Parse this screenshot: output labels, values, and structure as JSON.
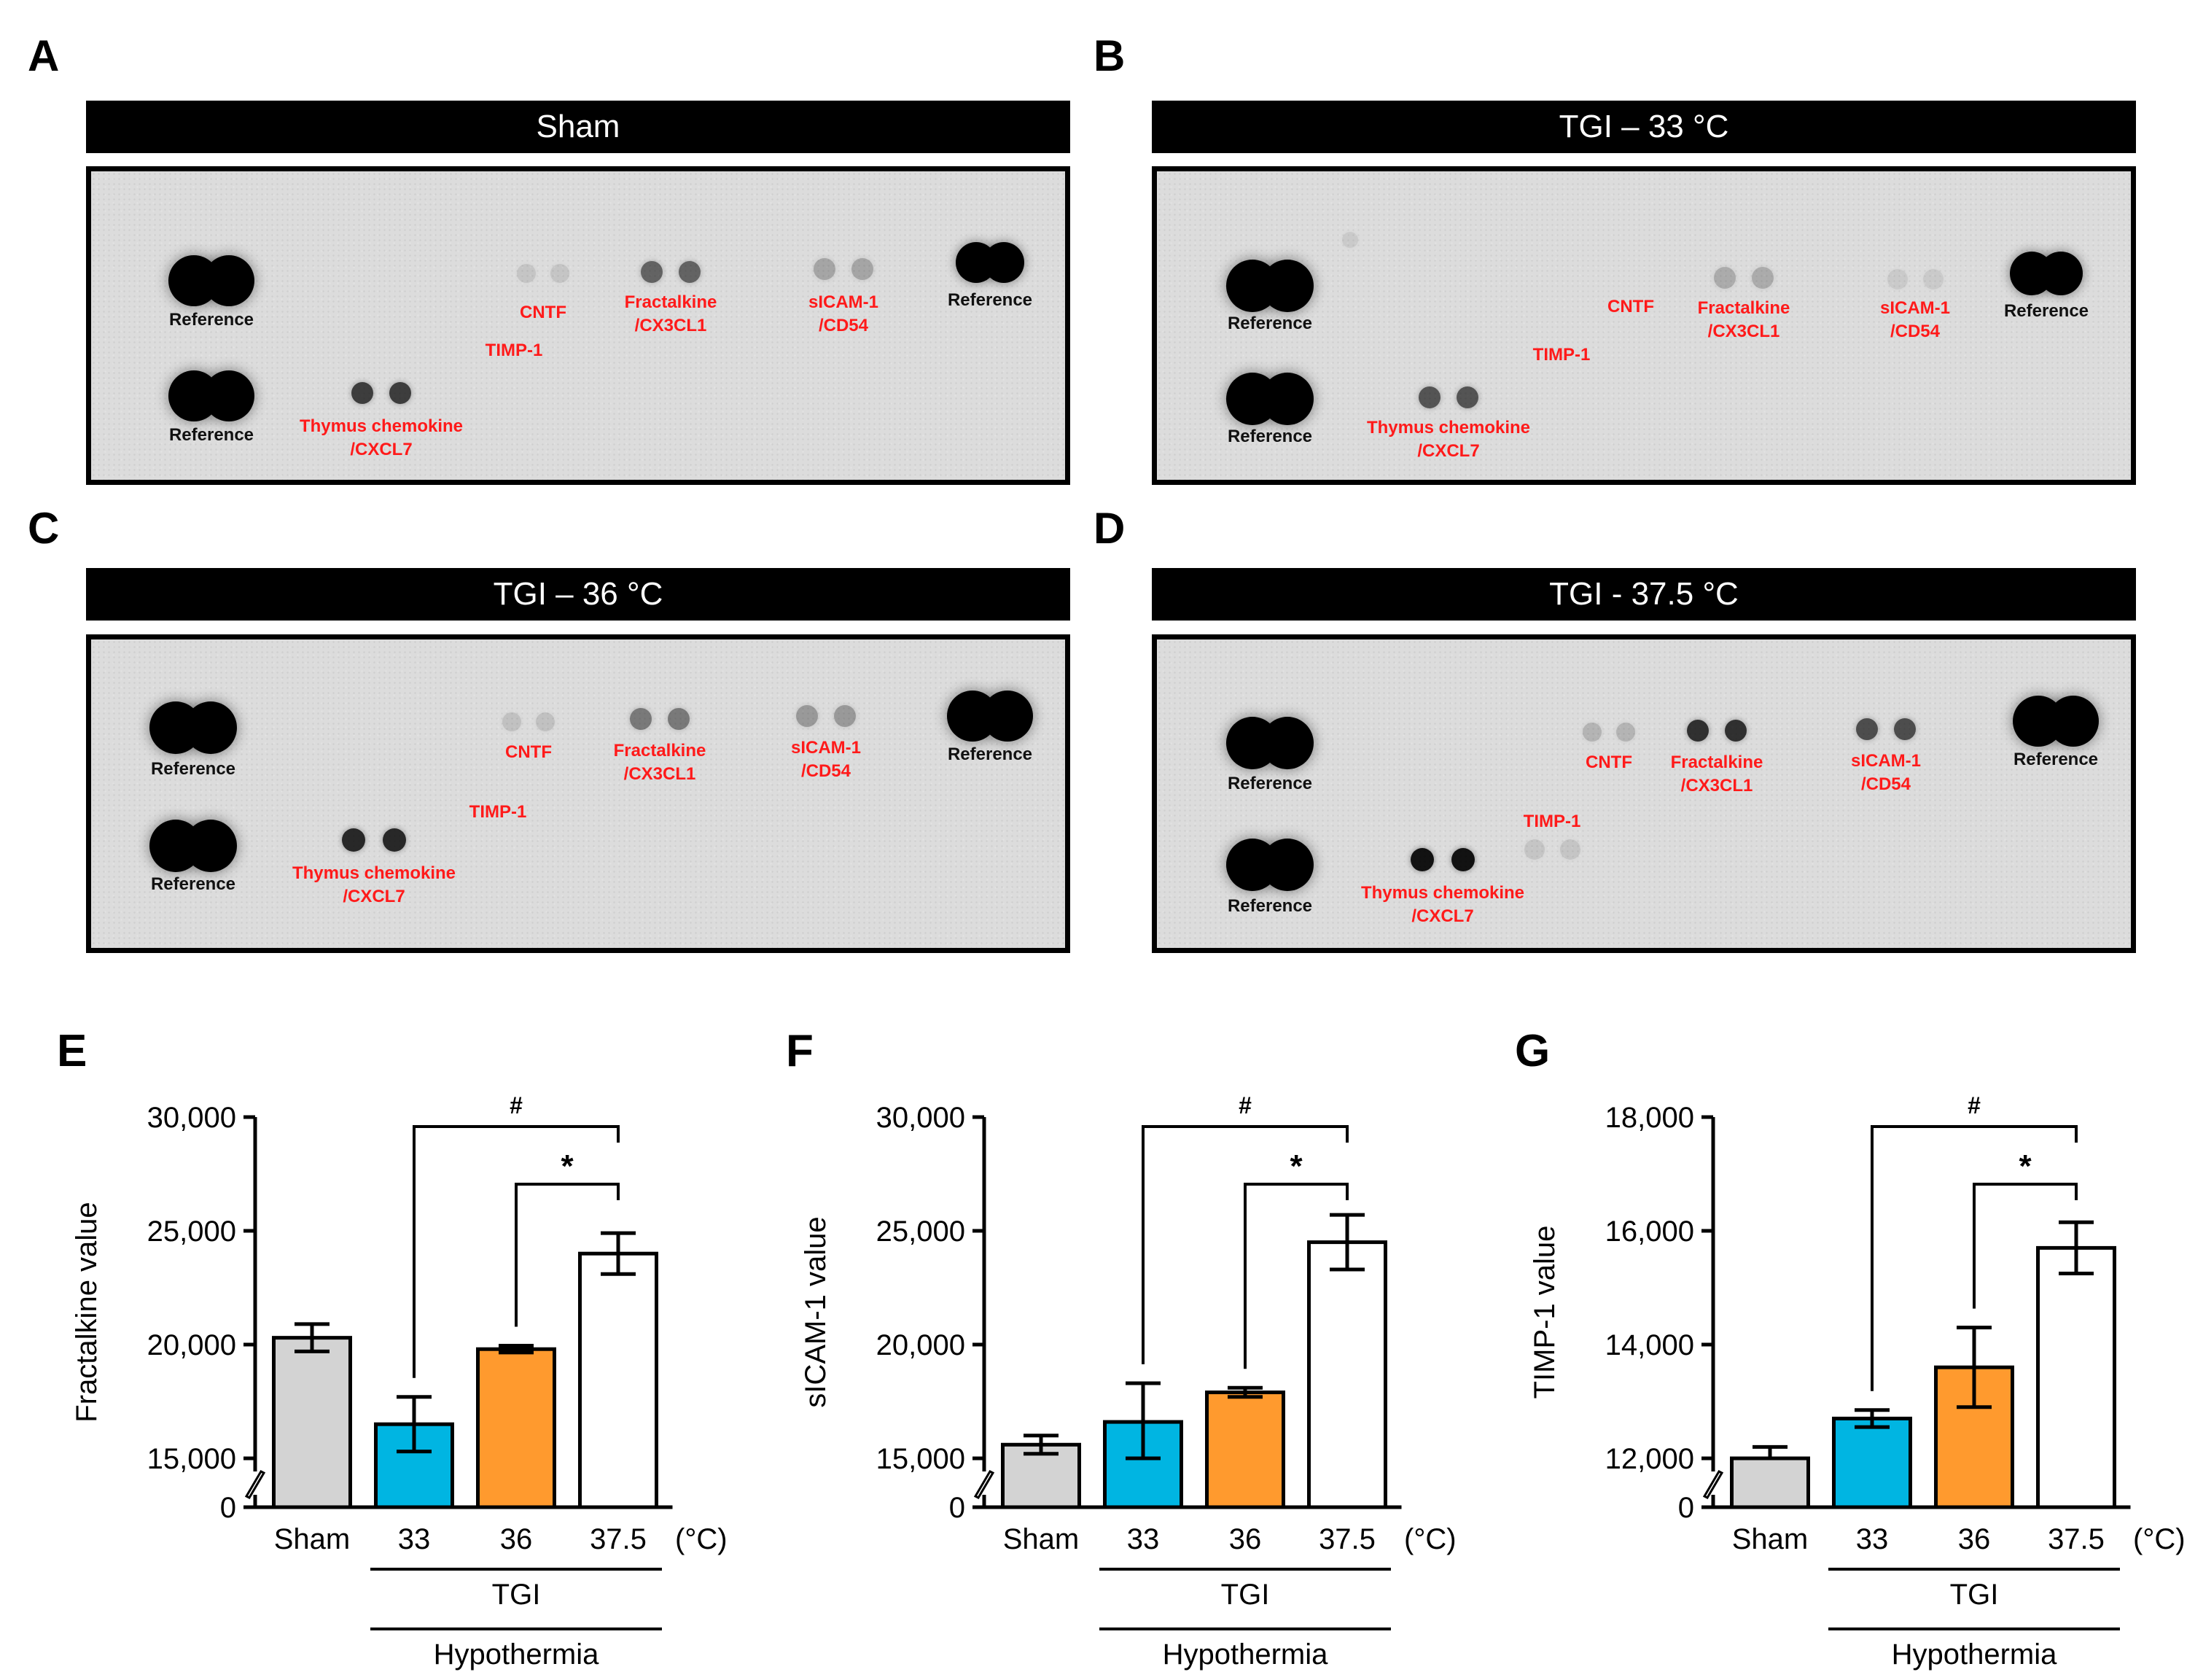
{
  "panels": [
    {
      "letter": "A",
      "title": "Sham"
    },
    {
      "letter": "B",
      "title": "TGI – 33 °C"
    },
    {
      "letter": "C",
      "title": "TGI – 36 °C"
    },
    {
      "letter": "D",
      "title": "TGI - 37.5 °C"
    }
  ],
  "blot_labels": {
    "reference": "Reference",
    "cntf": "CNTF",
    "timp1": "TIMP-1",
    "fractalkine": "Fractalkine\n/CX3CL1",
    "sicam1": "sICAM-1\n/CD54",
    "thymus": "Thymus chemokine\n/CXCL7"
  },
  "colors": {
    "sham": "#d3d3d3",
    "tgi33": "#00b5e2",
    "tgi36": "#ff9a2e",
    "tgi375": "#ffffff",
    "label_red": "#ff1a1a"
  },
  "chart_data": [
    {
      "letter": "E",
      "type": "bar",
      "ylabel": "Fractalkine value",
      "categories": [
        "Sham",
        "33",
        "36",
        "37.5"
      ],
      "values": [
        20300,
        16500,
        19800,
        24000
      ],
      "errors": [
        600,
        1200,
        150,
        900
      ],
      "yticks": [
        "0",
        "15,000",
        "20,000",
        "25,000",
        "30,000"
      ],
      "ylim": [
        0,
        30000
      ],
      "axis_break": true,
      "unit": "(°C)",
      "group_label": "TGI",
      "super_group_label": "Hypothermia",
      "sig_top": "#",
      "sig_bottom": "*"
    },
    {
      "letter": "F",
      "type": "bar",
      "ylabel": "sICAM-1 value",
      "categories": [
        "Sham",
        "33",
        "36",
        "37.5"
      ],
      "values": [
        15600,
        16600,
        17900,
        24500
      ],
      "errors": [
        400,
        1700,
        200,
        1200
      ],
      "yticks": [
        "0",
        "15,000",
        "20,000",
        "25,000",
        "30,000"
      ],
      "ylim": [
        0,
        30000
      ],
      "axis_break": true,
      "unit": "(°C)",
      "group_label": "TGI",
      "super_group_label": "Hypothermia",
      "sig_top": "#",
      "sig_bottom": "*"
    },
    {
      "letter": "G",
      "type": "bar",
      "ylabel": "TIMP-1 value",
      "categories": [
        "Sham",
        "33",
        "36",
        "37.5"
      ],
      "values": [
        11700,
        12700,
        13600,
        15700
      ],
      "errors": [
        500,
        150,
        700,
        450
      ],
      "yticks": [
        "0",
        "12,000",
        "14,000",
        "16,000",
        "18,000"
      ],
      "ylim": [
        0,
        18000
      ],
      "axis_break": true,
      "unit": "(°C)",
      "group_label": "TGI",
      "super_group_label": "Hypothermia",
      "sig_top": "#",
      "sig_bottom": "*"
    }
  ]
}
